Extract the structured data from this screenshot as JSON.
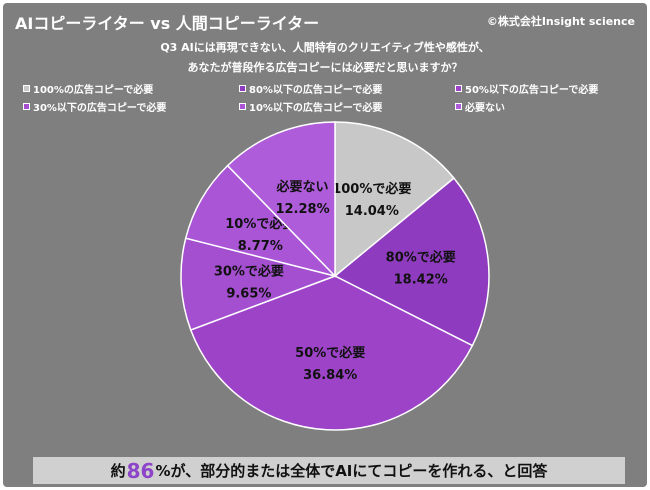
{
  "header": {
    "title": "AIコピーライター vs 人間コピーライター",
    "copyright": "©株式会社Insight science"
  },
  "question": {
    "line1": "Q3 AIには再現できない、人間特有のクリエイティブ性や感性が、",
    "line2": "あなたが普段作る広告コピーには必要だと思いますか？"
  },
  "legend": [
    {
      "label": "100%の広告コピーで必要",
      "color": "#c8c8c8"
    },
    {
      "label": "80%以下の広告コピーで必要",
      "color": "#8e3bbf"
    },
    {
      "label": "50%以下の広告コピーで必要",
      "color": "#9d43c8"
    },
    {
      "label": "30%以下の広告コピーで必要",
      "color": "#a44ed0"
    },
    {
      "label": "10%以下の広告コピーで必要",
      "color": "#a955d6"
    },
    {
      "label": "必要ない",
      "color": "#ae5cd9"
    }
  ],
  "chart_data": {
    "type": "pie",
    "title": "Q3 AIには再現できない、人間特有のクリエイティブ性や感性が、あなたが普段作る広告コピーには必要だと思いますか？",
    "slices": [
      {
        "label": "100%で必要",
        "value": 14.04,
        "value_label": "14.04%",
        "color": "#c8c8c8",
        "text_color": "#111111"
      },
      {
        "label": "80%で必要",
        "value": 18.42,
        "value_label": "18.42%",
        "color": "#8e3bbf",
        "text_color": "#111111"
      },
      {
        "label": "50%で必要",
        "value": 36.84,
        "value_label": "36.84%",
        "color": "#9d43c8",
        "text_color": "#111111"
      },
      {
        "label": "30%で必要",
        "value": 9.65,
        "value_label": "9.65%",
        "color": "#a44ed0",
        "text_color": "#111111"
      },
      {
        "label": "10%で必要",
        "value": 8.77,
        "value_label": "8.77%",
        "color": "#a955d6",
        "text_color": "#111111"
      },
      {
        "label": "必要ない",
        "value": 12.28,
        "value_label": "12.28%",
        "color": "#ae5cd9",
        "text_color": "#111111"
      }
    ],
    "legend_placement": "top"
  },
  "footer": {
    "prefix": "約",
    "highlight": "86",
    "suffix": "%が、部分的または全体でAIにてコピーを作れる、と回答",
    "highlight_color": "#8e44c9"
  }
}
